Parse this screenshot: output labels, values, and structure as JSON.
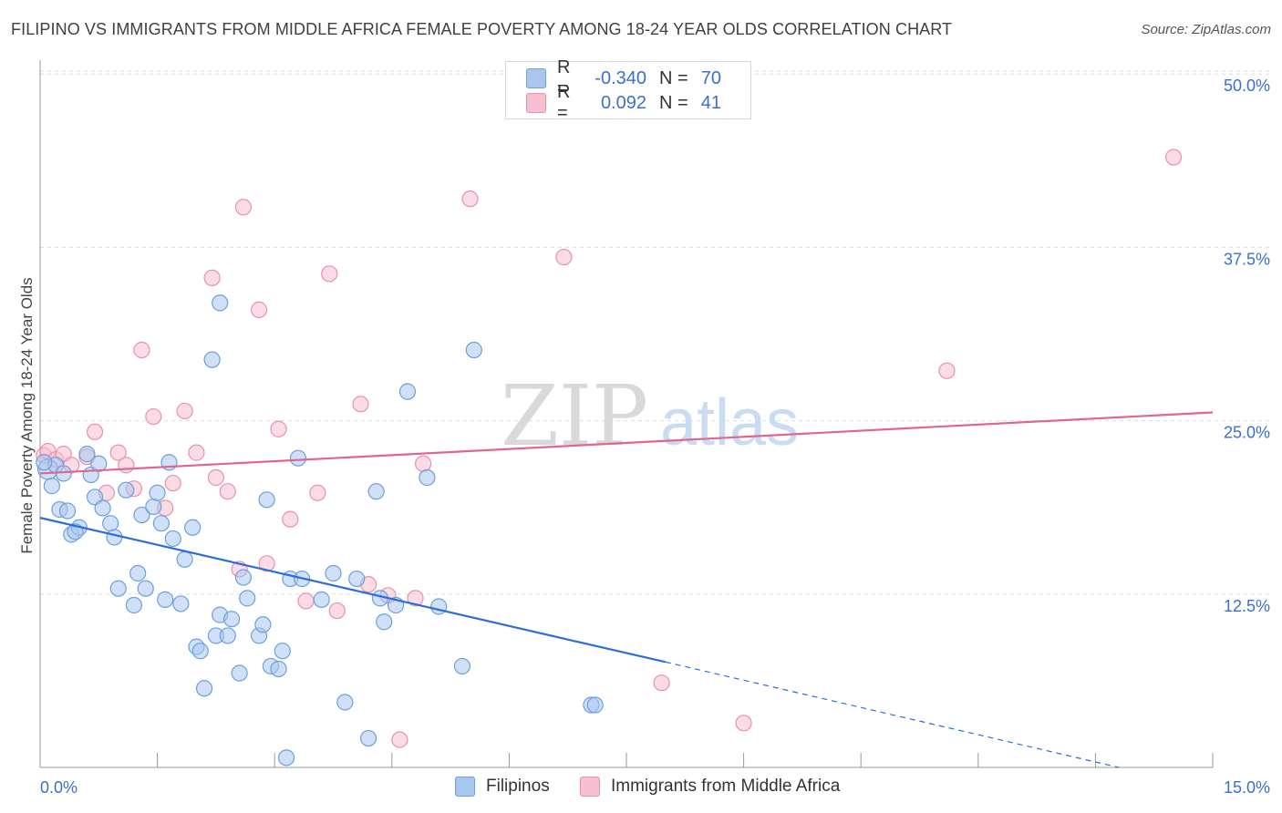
{
  "header": {
    "title": "FILIPINO VS IMMIGRANTS FROM MIDDLE AFRICA FEMALE POVERTY AMONG 18-24 YEAR OLDS CORRELATION CHART",
    "source": "Source: ZipAtlas.com"
  },
  "watermark": {
    "zip": "ZIP",
    "atlas": "atlas"
  },
  "legend": {
    "rows": [
      {
        "r_label": "R =",
        "r_value": "-0.340",
        "n_label": "N =",
        "n_value": "70"
      },
      {
        "r_label": "R =",
        "r_value": "0.092",
        "n_label": "N =",
        "n_value": "41"
      }
    ]
  },
  "bottom_legend": {
    "series1": "Filipinos",
    "series2": "Immigrants from Middle Africa"
  },
  "colors": {
    "blue_fill": "#a9c6ee",
    "blue_stroke": "#6e9fdc",
    "blue_line": "#2b6ed6",
    "pink_fill": "#f7bfd0",
    "pink_stroke": "#e891ae",
    "pink_line": "#e0658f",
    "grid": "#dddddd",
    "tick_label": "#3a6fcf"
  },
  "chart_data": {
    "type": "scatter",
    "title": "FILIPINO VS IMMIGRANTS FROM MIDDLE AFRICA FEMALE POVERTY AMONG 18-24 YEAR OLDS CORRELATION CHART",
    "xlabel": "",
    "ylabel": "Female Poverty Among 18-24 Year Olds",
    "xlim": [
      0,
      15
    ],
    "ylim": [
      0,
      51
    ],
    "x_tick_labels": [
      {
        "value": 0,
        "label": "0.0%"
      },
      {
        "value": 15,
        "label": "15.0%"
      }
    ],
    "y_tick_labels": [
      {
        "value": 12.5,
        "label": "12.5%"
      },
      {
        "value": 25,
        "label": "25.0%"
      },
      {
        "value": 37.5,
        "label": "37.5%"
      },
      {
        "value": 50,
        "label": "50.0%"
      }
    ],
    "series": [
      {
        "name": "Filipinos",
        "r": -0.34,
        "n": 70,
        "trend": {
          "x0": 0,
          "y0": 18.0,
          "x1": 8.0,
          "y1": 7.6,
          "dash_x1": 13.8,
          "dash_y1": 0
        },
        "points": [
          [
            0.1,
            21.5
          ],
          [
            0.15,
            20.3
          ],
          [
            0.2,
            21.8
          ],
          [
            0.3,
            21.2
          ],
          [
            0.25,
            18.6
          ],
          [
            0.35,
            18.5
          ],
          [
            0.4,
            16.8
          ],
          [
            0.5,
            17.3
          ],
          [
            0.6,
            22.6
          ],
          [
            0.65,
            21.1
          ],
          [
            0.7,
            19.5
          ],
          [
            0.75,
            21.9
          ],
          [
            0.8,
            18.7
          ],
          [
            0.9,
            17.6
          ],
          [
            0.95,
            16.6
          ],
          [
            1.0,
            12.9
          ],
          [
            1.1,
            20.0
          ],
          [
            1.2,
            11.7
          ],
          [
            1.25,
            14.0
          ],
          [
            1.3,
            18.2
          ],
          [
            1.35,
            12.9
          ],
          [
            1.45,
            18.8
          ],
          [
            1.5,
            19.8
          ],
          [
            1.55,
            17.6
          ],
          [
            1.6,
            12.1
          ],
          [
            1.65,
            22.0
          ],
          [
            1.7,
            16.5
          ],
          [
            1.8,
            11.8
          ],
          [
            1.85,
            15.0
          ],
          [
            1.95,
            17.3
          ],
          [
            2.0,
            8.7
          ],
          [
            2.05,
            8.4
          ],
          [
            2.1,
            5.7
          ],
          [
            2.2,
            29.4
          ],
          [
            2.25,
            9.5
          ],
          [
            2.3,
            11.0
          ],
          [
            2.4,
            9.5
          ],
          [
            2.45,
            10.7
          ],
          [
            2.55,
            6.8
          ],
          [
            2.6,
            13.7
          ],
          [
            2.3,
            33.5
          ],
          [
            2.65,
            12.2
          ],
          [
            2.8,
            9.5
          ],
          [
            2.85,
            10.3
          ],
          [
            2.9,
            19.3
          ],
          [
            2.95,
            7.3
          ],
          [
            3.05,
            7.1
          ],
          [
            3.1,
            8.4
          ],
          [
            3.15,
            0.7
          ],
          [
            3.2,
            13.6
          ],
          [
            3.3,
            22.3
          ],
          [
            3.35,
            13.6
          ],
          [
            3.6,
            12.1
          ],
          [
            3.75,
            14.0
          ],
          [
            3.9,
            4.7
          ],
          [
            4.05,
            13.6
          ],
          [
            4.2,
            2.1
          ],
          [
            4.3,
            19.9
          ],
          [
            4.35,
            12.2
          ],
          [
            4.4,
            10.5
          ],
          [
            4.55,
            11.7
          ],
          [
            4.7,
            27.1
          ],
          [
            4.95,
            20.9
          ],
          [
            5.1,
            11.6
          ],
          [
            5.4,
            7.3
          ],
          [
            5.55,
            30.1
          ],
          [
            7.05,
            4.5
          ],
          [
            7.1,
            4.5
          ],
          [
            0.05,
            22.0
          ],
          [
            0.45,
            17.0
          ]
        ]
      },
      {
        "name": "Immigrants from Middle Africa",
        "r": 0.092,
        "n": 41,
        "trend": {
          "x0": 0,
          "y0": 21.2,
          "x1": 15,
          "y1": 25.6
        },
        "points": [
          [
            0.05,
            22.5
          ],
          [
            0.1,
            22.8
          ],
          [
            0.2,
            22.2
          ],
          [
            0.3,
            22.6
          ],
          [
            0.4,
            21.8
          ],
          [
            0.6,
            22.4
          ],
          [
            0.7,
            24.2
          ],
          [
            0.85,
            19.8
          ],
          [
            1.0,
            22.7
          ],
          [
            1.1,
            21.8
          ],
          [
            1.2,
            20.1
          ],
          [
            1.3,
            30.1
          ],
          [
            1.45,
            25.3
          ],
          [
            1.6,
            18.7
          ],
          [
            1.7,
            20.5
          ],
          [
            1.85,
            25.7
          ],
          [
            2.0,
            22.7
          ],
          [
            2.2,
            35.3
          ],
          [
            2.25,
            20.9
          ],
          [
            2.4,
            19.9
          ],
          [
            2.55,
            14.3
          ],
          [
            2.6,
            40.4
          ],
          [
            2.8,
            33.0
          ],
          [
            2.9,
            14.7
          ],
          [
            3.05,
            24.4
          ],
          [
            3.2,
            17.9
          ],
          [
            3.4,
            12.0
          ],
          [
            3.55,
            19.8
          ],
          [
            3.7,
            35.6
          ],
          [
            3.8,
            11.3
          ],
          [
            4.1,
            26.2
          ],
          [
            4.2,
            13.2
          ],
          [
            4.45,
            12.4
          ],
          [
            4.6,
            2.0
          ],
          [
            4.8,
            12.2
          ],
          [
            4.9,
            21.9
          ],
          [
            5.5,
            41.0
          ],
          [
            6.7,
            36.8
          ],
          [
            7.95,
            6.1
          ],
          [
            9.0,
            3.2
          ],
          [
            11.6,
            28.6
          ]
        ],
        "extra_point": [
          14.5,
          44.0
        ]
      }
    ]
  }
}
